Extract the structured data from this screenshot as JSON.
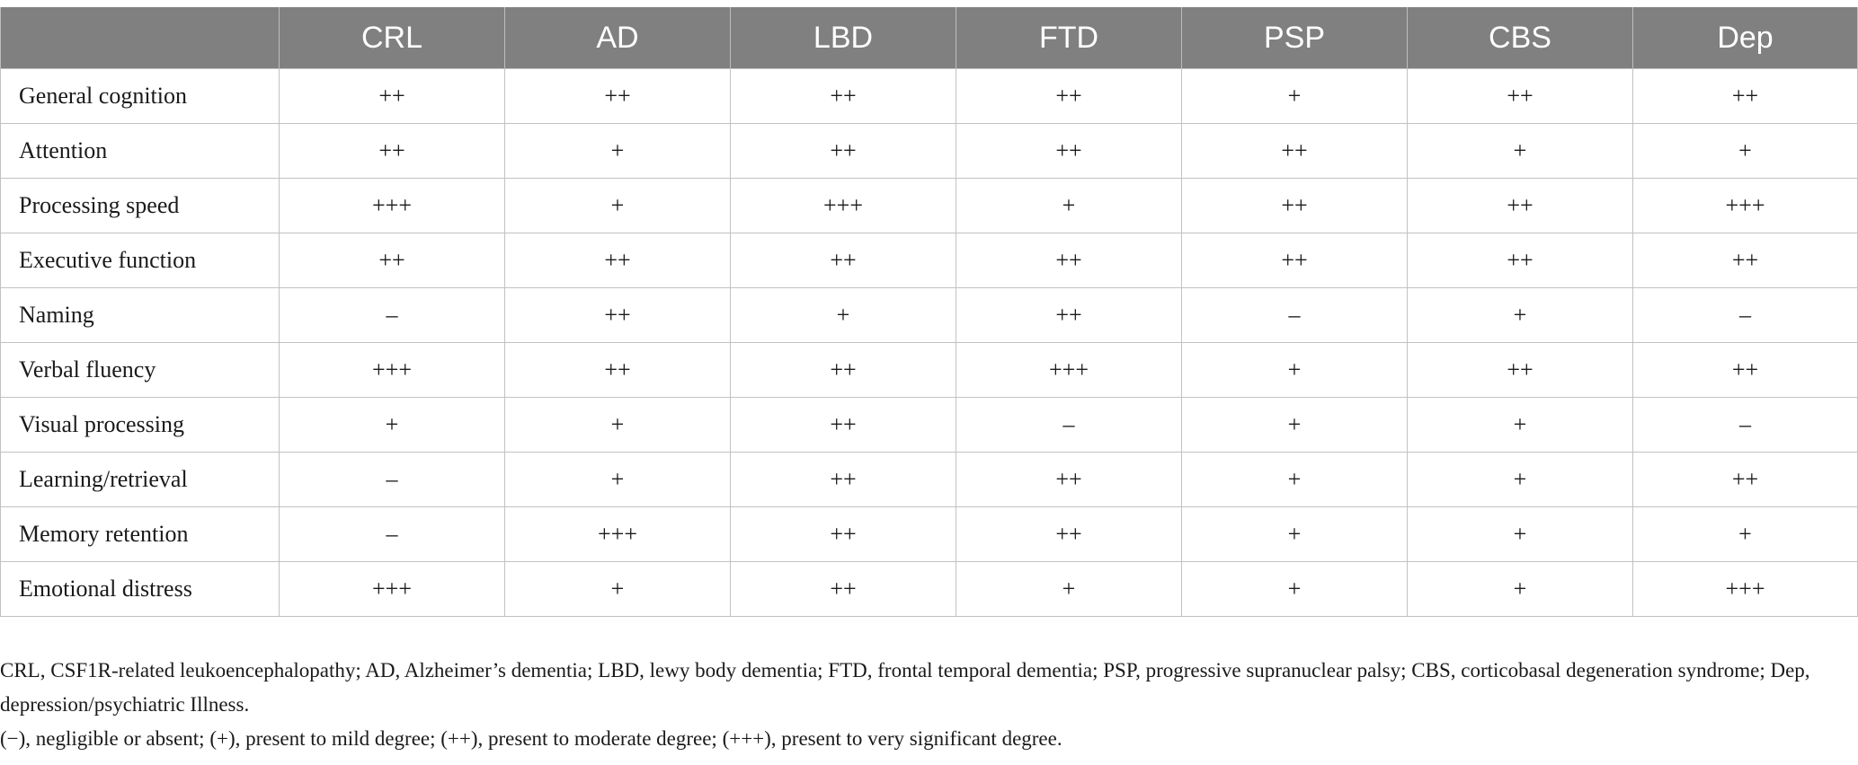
{
  "table": {
    "headers": [
      "",
      "CRL",
      "AD",
      "LBD",
      "FTD",
      "PSP",
      "CBS",
      "Dep"
    ],
    "rows": [
      {
        "label": "General cognition",
        "values": [
          "++",
          "++",
          "++",
          "++",
          "+",
          "++",
          "++"
        ]
      },
      {
        "label": "Attention",
        "values": [
          "++",
          "+",
          "++",
          "++",
          "++",
          "+",
          "+"
        ]
      },
      {
        "label": "Processing speed",
        "values": [
          "+++",
          "+",
          "+++",
          "+",
          "++",
          "++",
          "+++"
        ]
      },
      {
        "label": "Executive function",
        "values": [
          "++",
          "++",
          "++",
          "++",
          "++",
          "++",
          "++"
        ]
      },
      {
        "label": "Naming",
        "values": [
          "–",
          "++",
          "+",
          "++",
          "–",
          "+",
          "–"
        ]
      },
      {
        "label": "Verbal fluency",
        "values": [
          "+++",
          "++",
          "++",
          "+++",
          "+",
          "++",
          "++"
        ]
      },
      {
        "label": "Visual processing",
        "values": [
          "+",
          "+",
          "++",
          "–",
          "+",
          "+",
          "–"
        ]
      },
      {
        "label": "Learning/retrieval",
        "values": [
          "–",
          "+",
          "++",
          "++",
          "+",
          "+",
          "++"
        ]
      },
      {
        "label": "Memory retention",
        "values": [
          "–",
          "+++",
          "++",
          "++",
          "+",
          "+",
          "+"
        ]
      },
      {
        "label": "Emotional distress",
        "values": [
          "+++",
          "+",
          "++",
          "+",
          "+",
          "+",
          "+++"
        ]
      }
    ]
  },
  "footnotes": {
    "abbreviations": "CRL, CSF1R-related leukoencephalopathy; AD, Alzheimer’s dementia; LBD, lewy body dementia; FTD, frontal temporal dementia; PSP, progressive supranuclear palsy; CBS, corticobasal degeneration syndrome; Dep, depression/psychiatric Illness.",
    "legend": "(−), negligible or absent; (+), present to mild degree; (++), present to moderate degree; (+++), present to very significant degree."
  }
}
